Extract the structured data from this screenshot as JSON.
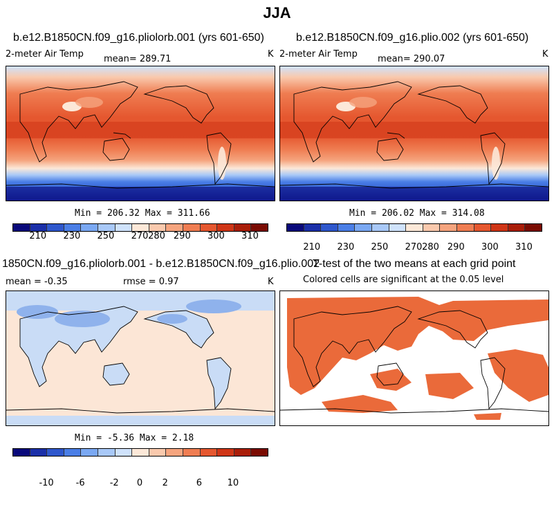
{
  "figure": {
    "title": "JJA"
  },
  "panels": [
    {
      "title": "b.e12.B1850CN.f09_g16.pliolorb.001 (yrs 601-650)",
      "variable": "2-meter Air Temp",
      "stat": "mean=  289.71",
      "units": "K",
      "minmax": "Min = 206.32 Max = 311.66",
      "colorbar_ticks": [
        "210",
        "230",
        "250",
        "270",
        "280",
        "290",
        "300",
        "310"
      ]
    },
    {
      "title": "b.e12.B1850CN.f09_g16.plio.002 (yrs 601-650)",
      "variable": "2-meter Air Temp",
      "stat": "mean=  290.07",
      "units": "K",
      "minmax": "Min = 206.02 Max = 314.08",
      "colorbar_ticks": [
        "210",
        "230",
        "250",
        "270",
        "280",
        "290",
        "300",
        "310"
      ]
    },
    {
      "title": "1850CN.f09_g16.pliolorb.001 - b.e12.B1850CN.f09_g16.plio.002",
      "stat": "mean =   -0.35",
      "stat2": "rmse =    0.97",
      "units": "K",
      "minmax": "Min =  -5.36 Max =   2.18",
      "colorbar_ticks": [
        "-10",
        "-6",
        "-2",
        "0",
        "2",
        "6",
        "10"
      ]
    },
    {
      "title": "T-test of the two means at each grid point",
      "subtitle": "Colored cells are significant at the 0.05 level"
    }
  ],
  "colors": {
    "temp_scale": [
      "#08087a",
      "#1a2fa8",
      "#2e57cc",
      "#4a7ee6",
      "#7aa8f2",
      "#a8c8f7",
      "#cfe2fb",
      "#fce8d8",
      "#f9c9ad",
      "#f5a47e",
      "#ef7d52",
      "#e5572f",
      "#cf3516",
      "#a91d08",
      "#7a0b02"
    ],
    "diff_scale": [
      "#08087a",
      "#1a2fa8",
      "#2e57cc",
      "#4a7ee6",
      "#7aa8f2",
      "#a8c8f7",
      "#cfe2fb",
      "#fce8d8",
      "#f9c9ad",
      "#f5a47e",
      "#ef7d52",
      "#e5572f",
      "#cf3516",
      "#a91d08",
      "#7a0b02"
    ],
    "ocean_diff": "#fce6d6",
    "land_diff": "#c9dcf6",
    "land_diff_strong": "#8fb2ec",
    "ttest_sig": "#ea6a3a"
  }
}
